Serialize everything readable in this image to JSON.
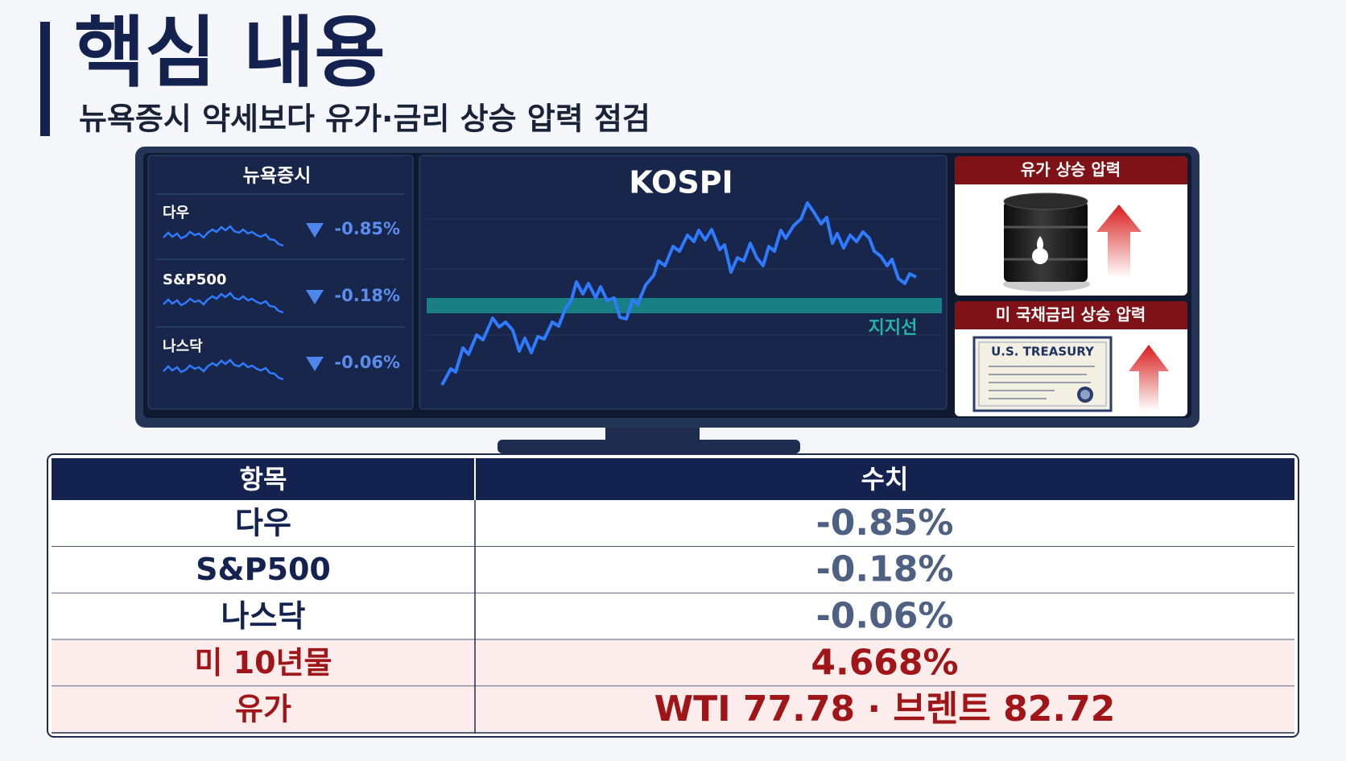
{
  "header": {
    "title": "핵심 내용",
    "subtitle": "뉴욕증시 약세보다 유가·금리 상승 압력 점검"
  },
  "monitor": {
    "left_panel": {
      "title": "뉴욕증시",
      "items": [
        {
          "name": "다우",
          "change": "-0.85%"
        },
        {
          "name": "S&P500",
          "change": "-0.18%"
        },
        {
          "name": "나스닥",
          "change": "-0.06%"
        }
      ]
    },
    "center_panel": {
      "title": "KOSPI",
      "support_label": "지지선"
    },
    "right_panels": [
      {
        "title": "유가 상승 압력"
      },
      {
        "title": "미 국채금리 상승 압력",
        "document_label": "U.S. TREASURY"
      }
    ]
  },
  "table": {
    "headers": [
      "항목",
      "수치"
    ],
    "rows": [
      [
        "다우",
        "-0.85%"
      ],
      [
        "S&P500",
        "-0.18%"
      ],
      [
        "나스닥",
        "-0.06%"
      ],
      [
        "미 10년물",
        "4.668%"
      ],
      [
        "유가",
        "WTI 77.78 · 브렌트 82.72"
      ]
    ],
    "highlight_rows": [
      3,
      4
    ]
  }
}
